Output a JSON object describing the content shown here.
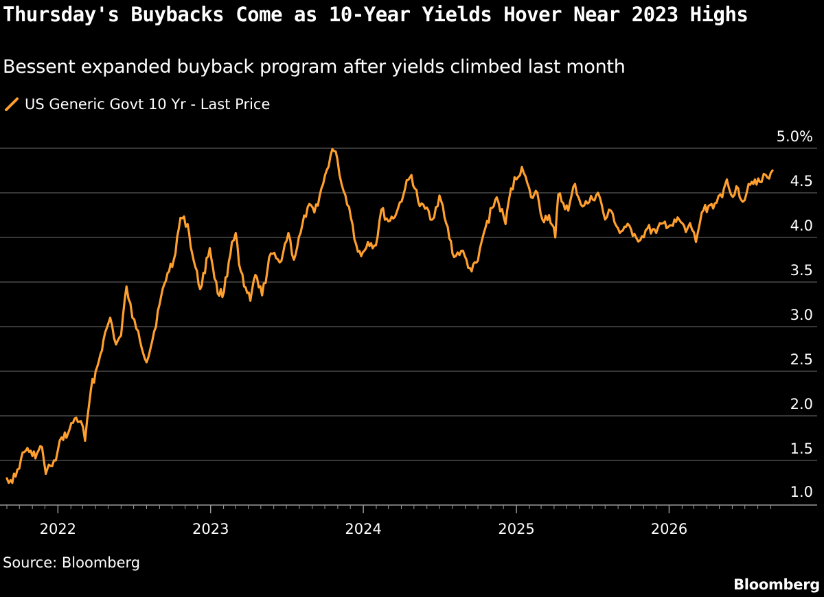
{
  "header": {
    "title": "Thursday's Buybacks Come as 10-Year Yields Hover Near 2023 Highs",
    "subtitle": "Bessent expanded buyback program after yields climbed last month"
  },
  "footer": {
    "source": "Source: Bloomberg",
    "brand": "Bloomberg"
  },
  "colors": {
    "background": "#000000",
    "line": "#ff9f2e",
    "grid": "#5a5a5a",
    "text": "#ffffff"
  },
  "chart_data": {
    "type": "line",
    "legend_position": "top-left",
    "grid": true,
    "ylim": [
      1.0,
      5.0
    ],
    "y_ticks": [
      1.0,
      1.5,
      2.0,
      2.5,
      3.0,
      3.5,
      4.0,
      4.5,
      5.0
    ],
    "y_tick_labels": [
      "1.0",
      "1.5",
      "2.0",
      "2.5",
      "3.0",
      "3.5",
      "4.0",
      "4.5",
      "5.0%"
    ],
    "x_range": [
      "2021-09-01",
      "2026-09-10"
    ],
    "x_ticks": [
      "2022-01-01",
      "2023-01-01",
      "2024-01-01",
      "2025-01-01",
      "2026-01-01"
    ],
    "x_tick_labels": [
      "2022",
      "2023",
      "2024",
      "2025",
      "2026"
    ],
    "series": [
      {
        "name": "US Generic Govt 10 Yr - Last Price",
        "points": [
          [
            "2021-09-01",
            1.3
          ],
          [
            "2021-09-10",
            1.28
          ],
          [
            "2021-09-22",
            1.32
          ],
          [
            "2021-10-05",
            1.52
          ],
          [
            "2021-10-20",
            1.64
          ],
          [
            "2021-11-01",
            1.55
          ],
          [
            "2021-11-12",
            1.58
          ],
          [
            "2021-11-24",
            1.65
          ],
          [
            "2021-12-03",
            1.35
          ],
          [
            "2021-12-14",
            1.44
          ],
          [
            "2021-12-27",
            1.5
          ],
          [
            "2022-01-10",
            1.76
          ],
          [
            "2022-01-25",
            1.8
          ],
          [
            "2022-02-10",
            1.97
          ],
          [
            "2022-02-25",
            1.94
          ],
          [
            "2022-03-07",
            1.72
          ],
          [
            "2022-03-21",
            2.3
          ],
          [
            "2022-04-05",
            2.55
          ],
          [
            "2022-04-20",
            2.85
          ],
          [
            "2022-05-06",
            3.1
          ],
          [
            "2022-05-20",
            2.8
          ],
          [
            "2022-06-01",
            2.9
          ],
          [
            "2022-06-14",
            3.45
          ],
          [
            "2022-06-28",
            3.1
          ],
          [
            "2022-07-12",
            2.95
          ],
          [
            "2022-08-01",
            2.6
          ],
          [
            "2022-08-15",
            2.85
          ],
          [
            "2022-09-01",
            3.25
          ],
          [
            "2022-09-20",
            3.6
          ],
          [
            "2022-10-05",
            3.75
          ],
          [
            "2022-10-21",
            4.22
          ],
          [
            "2022-11-07",
            4.15
          ],
          [
            "2022-11-18",
            3.82
          ],
          [
            "2022-12-07",
            3.42
          ],
          [
            "2022-12-30",
            3.88
          ],
          [
            "2023-01-18",
            3.37
          ],
          [
            "2023-02-02",
            3.39
          ],
          [
            "2023-02-21",
            3.95
          ],
          [
            "2023-03-02",
            4.05
          ],
          [
            "2023-03-10",
            3.7
          ],
          [
            "2023-03-22",
            3.45
          ],
          [
            "2023-04-06",
            3.29
          ],
          [
            "2023-04-18",
            3.58
          ],
          [
            "2023-05-04",
            3.35
          ],
          [
            "2023-05-25",
            3.82
          ],
          [
            "2023-06-15",
            3.72
          ],
          [
            "2023-07-06",
            4.05
          ],
          [
            "2023-07-19",
            3.75
          ],
          [
            "2023-08-04",
            4.05
          ],
          [
            "2023-08-21",
            4.34
          ],
          [
            "2023-09-06",
            4.28
          ],
          [
            "2023-09-27",
            4.6
          ],
          [
            "2023-10-19",
            4.99
          ],
          [
            "2023-10-31",
            4.88
          ],
          [
            "2023-11-10",
            4.6
          ],
          [
            "2023-11-28",
            4.34
          ],
          [
            "2023-12-15",
            3.92
          ],
          [
            "2023-12-27",
            3.79
          ],
          [
            "2024-01-12",
            3.95
          ],
          [
            "2024-01-31",
            3.91
          ],
          [
            "2024-02-13",
            4.31
          ],
          [
            "2024-03-01",
            4.18
          ],
          [
            "2024-03-20",
            4.27
          ],
          [
            "2024-04-10",
            4.55
          ],
          [
            "2024-04-25",
            4.7
          ],
          [
            "2024-05-15",
            4.35
          ],
          [
            "2024-06-05",
            4.3
          ],
          [
            "2024-06-14",
            4.2
          ],
          [
            "2024-07-01",
            4.47
          ],
          [
            "2024-07-17",
            4.16
          ],
          [
            "2024-08-05",
            3.78
          ],
          [
            "2024-08-22",
            3.85
          ],
          [
            "2024-09-16",
            3.62
          ],
          [
            "2024-10-01",
            3.74
          ],
          [
            "2024-10-15",
            4.05
          ],
          [
            "2024-11-04",
            4.33
          ],
          [
            "2024-11-15",
            4.45
          ],
          [
            "2024-12-06",
            4.15
          ],
          [
            "2024-12-19",
            4.55
          ],
          [
            "2025-01-14",
            4.79
          ],
          [
            "2025-02-05",
            4.45
          ],
          [
            "2025-02-20",
            4.5
          ],
          [
            "2025-03-04",
            4.2
          ],
          [
            "2025-03-20",
            4.25
          ],
          [
            "2025-04-04",
            4.0
          ],
          [
            "2025-04-11",
            4.48
          ],
          [
            "2025-05-05",
            4.3
          ],
          [
            "2025-05-21",
            4.6
          ],
          [
            "2025-06-04",
            4.37
          ],
          [
            "2025-06-20",
            4.38
          ],
          [
            "2025-07-15",
            4.5
          ],
          [
            "2025-08-01",
            4.2
          ],
          [
            "2025-08-15",
            4.3
          ],
          [
            "2025-09-05",
            4.05
          ],
          [
            "2025-09-20",
            4.12
          ],
          [
            "2025-10-10",
            4.04
          ],
          [
            "2025-10-24",
            3.97
          ],
          [
            "2025-11-10",
            4.1
          ],
          [
            "2025-12-01",
            4.05
          ],
          [
            "2025-12-18",
            4.16
          ],
          [
            "2026-01-10",
            4.13
          ],
          [
            "2026-01-25",
            4.2
          ],
          [
            "2026-02-10",
            4.06
          ],
          [
            "2026-02-20",
            4.16
          ],
          [
            "2026-03-06",
            3.95
          ],
          [
            "2026-03-20",
            4.28
          ],
          [
            "2026-04-05",
            4.35
          ],
          [
            "2026-04-20",
            4.38
          ],
          [
            "2026-05-08",
            4.45
          ],
          [
            "2026-05-19",
            4.65
          ],
          [
            "2026-05-29",
            4.48
          ],
          [
            "2026-06-15",
            4.55
          ],
          [
            "2026-06-26",
            4.4
          ],
          [
            "2026-07-10",
            4.6
          ],
          [
            "2026-07-25",
            4.65
          ],
          [
            "2026-08-10",
            4.62
          ],
          [
            "2026-08-20",
            4.7
          ],
          [
            "2026-08-28",
            4.66
          ],
          [
            "2026-09-05",
            4.75
          ]
        ]
      }
    ]
  }
}
